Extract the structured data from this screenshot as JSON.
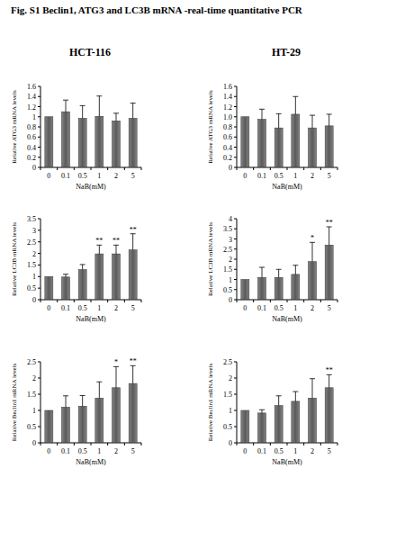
{
  "title": "Fig. S1 Beclin1, ATG3 and LC3B mRNA -real-time quantitative PCR",
  "columns": [
    "HCT-116",
    "HT-29"
  ],
  "chart_data": [
    {
      "type": "bar",
      "categories": [
        "0",
        "0.1",
        "0.5",
        "1",
        "2",
        "5"
      ],
      "values": [
        1,
        1.1,
        0.97,
        1.01,
        0.92,
        0.97
      ],
      "errors": [
        0,
        0.23,
        0.25,
        0.4,
        0.15,
        0.3
      ],
      "annotations": [
        null,
        null,
        null,
        null,
        null,
        null
      ],
      "x_label": "NaB(mM)",
      "y_label": "Relative ATG3 mRNA levels",
      "color": "#5a5a5a",
      "ylim": [
        0,
        1.6
      ],
      "yticks": [
        0,
        0.2,
        0.4,
        0.6,
        0.8,
        1,
        1.2,
        1.4,
        1.6
      ]
    },
    {
      "type": "bar",
      "categories": [
        "0",
        "0.1",
        "0.5",
        "1",
        "2",
        "5"
      ],
      "values": [
        1,
        0.95,
        0.78,
        1.05,
        0.78,
        0.82
      ],
      "errors": [
        0,
        0.2,
        0.28,
        0.35,
        0.25,
        0.23
      ],
      "annotations": [
        null,
        null,
        null,
        null,
        null,
        null
      ],
      "x_label": "NaB(mM)",
      "y_label": "Relative ATG3 mRNA levels",
      "color": "#5a5a5a",
      "ylim": [
        0,
        1.6
      ],
      "yticks": [
        0,
        0.2,
        0.4,
        0.6,
        0.8,
        {
          "value": 1,
          "label": "1.0"
        },
        1.2,
        1.4,
        1.6
      ]
    },
    {
      "type": "bar",
      "categories": [
        "0",
        "0.1",
        "0.5",
        "1",
        "2",
        "5"
      ],
      "values": [
        1,
        0.98,
        1.3,
        1.98,
        1.98,
        2.15
      ],
      "errors": [
        0,
        0.12,
        0.22,
        0.38,
        0.38,
        0.7
      ],
      "annotations": [
        null,
        null,
        null,
        "**",
        "**",
        "**"
      ],
      "x_label": "NaB(mM)",
      "y_label": "Relative LC3B mRNA levels",
      "color": "#5a5a5a",
      "ylim": [
        0,
        3.5
      ],
      "yticks": [
        0,
        0.5,
        1,
        1.5,
        2,
        2.5,
        3,
        3.5
      ]
    },
    {
      "type": "bar",
      "categories": [
        "0",
        "0.1",
        "0.5",
        "1",
        "2",
        "5"
      ],
      "values": [
        1,
        1.1,
        1.1,
        1.25,
        1.88,
        2.7
      ],
      "errors": [
        0,
        0.5,
        0.4,
        0.45,
        0.95,
        0.9
      ],
      "annotations": [
        null,
        null,
        null,
        null,
        "*",
        "**"
      ],
      "x_label": "NaB(mM)",
      "y_label": "Relative LC3B mRNA levels",
      "color": "#5a5a5a",
      "ylim": [
        0,
        4
      ],
      "yticks": [
        0,
        0.5,
        1,
        1.5,
        2,
        2.5,
        3,
        3.5,
        4
      ]
    },
    {
      "type": "bar",
      "categories": [
        "0",
        "0.1",
        "0.5",
        "1",
        "2",
        "5"
      ],
      "values": [
        1,
        1.1,
        1.13,
        1.38,
        1.7,
        1.83
      ],
      "errors": [
        0,
        0.35,
        0.33,
        0.5,
        0.65,
        0.55
      ],
      "annotations": [
        null,
        null,
        null,
        null,
        "*",
        "**"
      ],
      "x_label": "NaB(mM)",
      "y_label": "Relative Beclin1 mRNA levels",
      "color": "#5a5a5a",
      "ylim": [
        0,
        2.5
      ],
      "yticks": [
        0,
        0.5,
        1,
        1.5,
        2,
        2.5
      ]
    },
    {
      "type": "bar",
      "categories": [
        "0",
        "0.1",
        "0.5",
        "1",
        "2",
        "5"
      ],
      "values": [
        1,
        0.92,
        1.15,
        1.28,
        1.38,
        1.7
      ],
      "errors": [
        0,
        0.1,
        0.3,
        0.3,
        0.6,
        0.4
      ],
      "annotations": [
        null,
        null,
        null,
        null,
        null,
        "**"
      ],
      "x_label": "NaB(mM)",
      "y_label": "Relative Beclin1 mRNA levels",
      "color": "#5a5a5a",
      "ylim": [
        0,
        2.5
      ],
      "yticks": [
        0,
        0.5,
        1,
        1.5,
        2,
        2.5
      ]
    }
  ]
}
